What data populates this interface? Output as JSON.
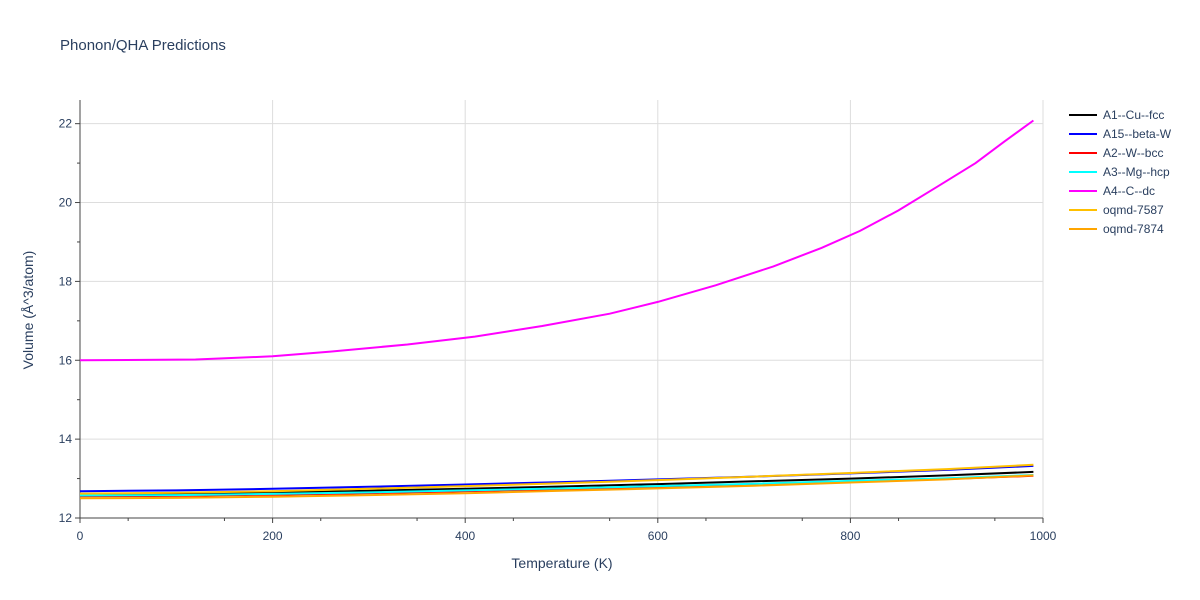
{
  "chart_data": {
    "type": "line",
    "title": "Phonon/QHA Predictions",
    "xlabel": "Temperature (K)",
    "ylabel": "Volume (Å^3/atom)",
    "xlim": [
      0,
      1000
    ],
    "ylim": [
      12,
      22.6
    ],
    "xticks": [
      0,
      200,
      400,
      600,
      800,
      1000
    ],
    "yticks": [
      12,
      14,
      16,
      18,
      20,
      22
    ],
    "grid": true,
    "legend_position": "top-right",
    "series": [
      {
        "name": "A1--Cu--fcc",
        "color": "#000000",
        "x": [
          0,
          100,
          200,
          300,
          400,
          500,
          600,
          700,
          800,
          900,
          990
        ],
        "y": [
          12.58,
          12.6,
          12.64,
          12.69,
          12.74,
          12.8,
          12.86,
          12.93,
          13.0,
          13.08,
          13.17
        ]
      },
      {
        "name": "A15--beta-W",
        "color": "#0000ff",
        "x": [
          0,
          100,
          200,
          300,
          400,
          500,
          600,
          700,
          800,
          900,
          990
        ],
        "y": [
          12.68,
          12.7,
          12.74,
          12.79,
          12.85,
          12.91,
          12.98,
          13.05,
          13.13,
          13.22,
          13.32
        ]
      },
      {
        "name": "A2--W--bcc",
        "color": "#ff0000",
        "x": [
          0,
          100,
          200,
          300,
          400,
          500,
          600,
          700,
          800,
          900,
          990
        ],
        "y": [
          12.55,
          12.56,
          12.59,
          12.63,
          12.68,
          12.73,
          12.79,
          12.85,
          12.92,
          12.99,
          13.07
        ]
      },
      {
        "name": "A3--Mg--hcp",
        "color": "#00ffff",
        "x": [
          0,
          100,
          200,
          300,
          400,
          500,
          600,
          700,
          800,
          900,
          990
        ],
        "y": [
          12.57,
          12.58,
          12.61,
          12.65,
          12.7,
          12.75,
          12.81,
          12.87,
          12.94,
          13.01,
          13.09
        ]
      },
      {
        "name": "A4--C--dc",
        "color": "#ff00ff",
        "x": [
          0,
          120,
          200,
          260,
          340,
          410,
          480,
          550,
          600,
          660,
          720,
          770,
          810,
          850,
          890,
          930,
          960,
          990
        ],
        "y": [
          16.0,
          16.02,
          16.1,
          16.22,
          16.4,
          16.6,
          16.87,
          17.18,
          17.48,
          17.9,
          18.38,
          18.85,
          19.28,
          19.8,
          20.4,
          21.0,
          21.55,
          22.08
        ]
      },
      {
        "name": "oqmd-7587",
        "color": "#ffc000",
        "x": [
          0,
          100,
          200,
          300,
          400,
          500,
          600,
          700,
          800,
          900,
          990
        ],
        "y": [
          12.62,
          12.64,
          12.68,
          12.74,
          12.81,
          12.88,
          12.96,
          13.05,
          13.14,
          13.24,
          13.35
        ]
      },
      {
        "name": "oqmd-7874",
        "color": "#ffa500",
        "x": [
          0,
          100,
          200,
          300,
          400,
          500,
          600,
          700,
          800,
          900,
          990
        ],
        "y": [
          12.5,
          12.51,
          12.54,
          12.58,
          12.63,
          12.69,
          12.75,
          12.82,
          12.9,
          12.98,
          13.08
        ]
      }
    ]
  }
}
